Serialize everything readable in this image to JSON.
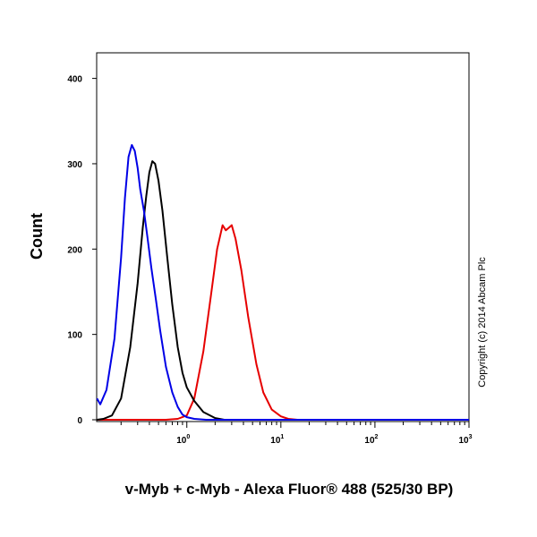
{
  "chart_data": {
    "type": "line",
    "title": "",
    "xlabel": "v-Myb + c-Myb - Alexa Fluor® 488 (525/30 BP)",
    "ylabel": "Count",
    "x_scale": "log",
    "xlim": [
      0.11,
      1000
    ],
    "ylim": [
      0,
      430
    ],
    "x_tick_labels": [
      {
        "value": 1,
        "base": "10",
        "exp": "0"
      },
      {
        "value": 10,
        "base": "10",
        "exp": "1"
      },
      {
        "value": 100,
        "base": "10",
        "exp": "2"
      },
      {
        "value": 1000,
        "base": "10",
        "exp": "3"
      }
    ],
    "y_ticks": [
      0,
      100,
      200,
      300,
      400
    ],
    "grid": false,
    "annotations": [
      "Copyright (c) 2014 Abcam Plc"
    ],
    "series": [
      {
        "color": "#0000e6",
        "points": [
          [
            0.111,
            25
          ],
          [
            0.12,
            18
          ],
          [
            0.14,
            35
          ],
          [
            0.17,
            95
          ],
          [
            0.2,
            190
          ],
          [
            0.22,
            260
          ],
          [
            0.24,
            308
          ],
          [
            0.26,
            322
          ],
          [
            0.28,
            315
          ],
          [
            0.3,
            295
          ],
          [
            0.32,
            270
          ],
          [
            0.35,
            245
          ],
          [
            0.38,
            215
          ],
          [
            0.42,
            178
          ],
          [
            0.47,
            140
          ],
          [
            0.52,
            105
          ],
          [
            0.6,
            62
          ],
          [
            0.7,
            32
          ],
          [
            0.8,
            15
          ],
          [
            0.9,
            6
          ],
          [
            1.0,
            3
          ],
          [
            1.2,
            1
          ],
          [
            1.6,
            0
          ],
          [
            1000,
            0
          ]
        ]
      },
      {
        "color": "#000000",
        "points": [
          [
            0.111,
            0
          ],
          [
            0.13,
            1
          ],
          [
            0.16,
            5
          ],
          [
            0.2,
            25
          ],
          [
            0.25,
            85
          ],
          [
            0.3,
            160
          ],
          [
            0.34,
            225
          ],
          [
            0.37,
            262
          ],
          [
            0.4,
            290
          ],
          [
            0.43,
            303
          ],
          [
            0.46,
            300
          ],
          [
            0.5,
            280
          ],
          [
            0.55,
            245
          ],
          [
            0.62,
            190
          ],
          [
            0.7,
            135
          ],
          [
            0.8,
            85
          ],
          [
            0.9,
            55
          ],
          [
            1.0,
            38
          ],
          [
            1.2,
            22
          ],
          [
            1.5,
            9
          ],
          [
            2.0,
            2
          ],
          [
            2.5,
            0
          ],
          [
            1000,
            0
          ]
        ]
      },
      {
        "color": "#e60000",
        "points": [
          [
            0.111,
            0
          ],
          [
            0.6,
            0
          ],
          [
            0.8,
            1
          ],
          [
            1.0,
            5
          ],
          [
            1.2,
            25
          ],
          [
            1.5,
            80
          ],
          [
            1.8,
            145
          ],
          [
            2.1,
            200
          ],
          [
            2.4,
            228
          ],
          [
            2.6,
            222
          ],
          [
            2.8,
            225
          ],
          [
            3.0,
            228
          ],
          [
            3.3,
            212
          ],
          [
            3.8,
            175
          ],
          [
            4.5,
            120
          ],
          [
            5.5,
            65
          ],
          [
            6.5,
            32
          ],
          [
            8.0,
            12
          ],
          [
            10,
            4
          ],
          [
            12,
            1
          ],
          [
            15,
            0
          ],
          [
            1000,
            0
          ]
        ]
      }
    ]
  }
}
